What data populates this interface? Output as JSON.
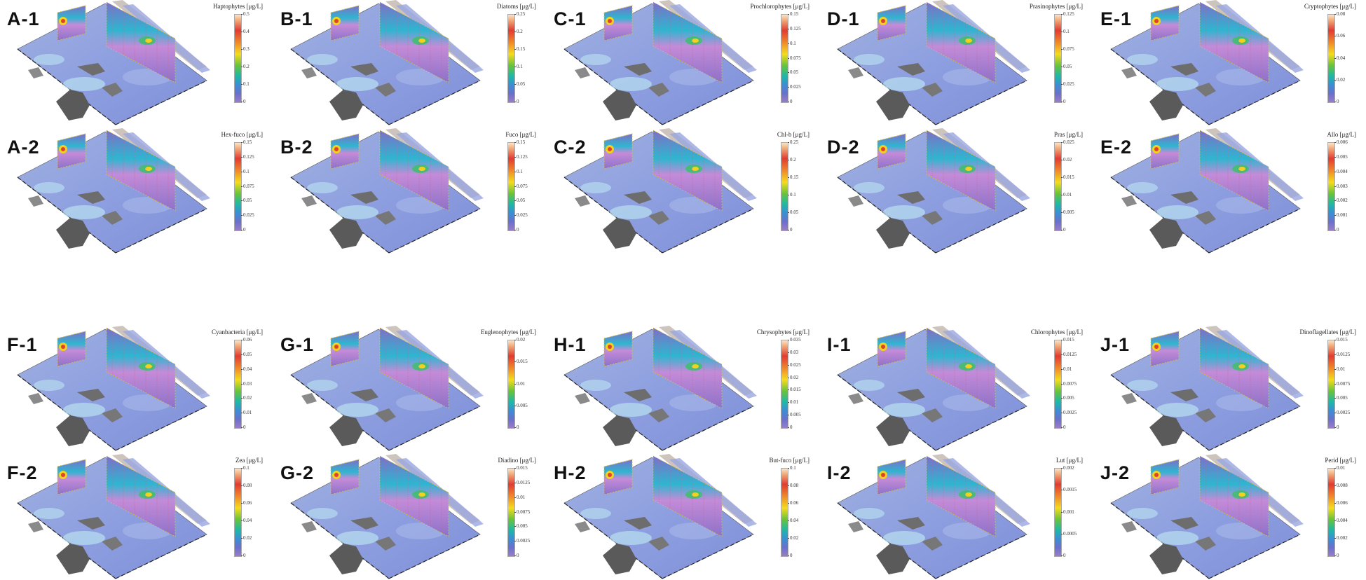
{
  "panels": [
    {
      "label": "A-1",
      "title": "Haptophytes [μg/L]",
      "ticks": [
        "0.5",
        "0.4",
        "0.3",
        "0.2",
        "0.1",
        "0"
      ]
    },
    {
      "label": "B-1",
      "title": "Diatoms [μg/L]",
      "ticks": [
        "0.25",
        "0.2",
        "0.15",
        "0.1",
        "0.05",
        "0"
      ]
    },
    {
      "label": "C-1",
      "title": "Prochlorophytes [μg/L]",
      "ticks": [
        "0.15",
        "0.125",
        "0.1",
        "0.075",
        "0.05",
        "0.025",
        "0"
      ]
    },
    {
      "label": "D-1",
      "title": "Prasinophytes [μg/L]",
      "ticks": [
        "0.125",
        "0.1",
        "0.075",
        "0.05",
        "0.025",
        "0"
      ]
    },
    {
      "label": "E-1",
      "title": "Cryptophytes [μg/L]",
      "ticks": [
        "0.08",
        "0.06",
        "0.04",
        "0.02",
        "0"
      ]
    },
    {
      "label": "A-2",
      "title": "Hex-fuco [μg/L]",
      "ticks": [
        "0.15",
        "0.125",
        "0.1",
        "0.075",
        "0.05",
        "0.025",
        "0"
      ]
    },
    {
      "label": "B-2",
      "title": "Fuco [μg/L]",
      "ticks": [
        "0.15",
        "0.125",
        "0.1",
        "0.075",
        "0.05",
        "0.025",
        "0"
      ]
    },
    {
      "label": "C-2",
      "title": "Chl-b [μg/L]",
      "ticks": [
        "0.25",
        "0.2",
        "0.15",
        "0.1",
        "0.05",
        "0"
      ]
    },
    {
      "label": "D-2",
      "title": "Pras [μg/L]",
      "ticks": [
        "0.025",
        "0.02",
        "0.015",
        "0.01",
        "0.005",
        "0"
      ]
    },
    {
      "label": "E-2",
      "title": "Allo [μg/L]",
      "ticks": [
        "0.006",
        "0.005",
        "0.004",
        "0.003",
        "0.002",
        "0.001",
        "0"
      ]
    },
    {
      "label": "F-1",
      "title": "Cyanbacteria [μg/L]",
      "ticks": [
        "0.06",
        "0.05",
        "0.04",
        "0.03",
        "0.02",
        "0.01",
        "0"
      ]
    },
    {
      "label": "G-1",
      "title": "Euglenophytes [μg/L]",
      "ticks": [
        "0.02",
        "0.015",
        "0.01",
        "0.005",
        "0"
      ]
    },
    {
      "label": "H-1",
      "title": "Chrysophytes [μg/L]",
      "ticks": [
        "0.035",
        "0.03",
        "0.025",
        "0.02",
        "0.015",
        "0.01",
        "0.005",
        "0"
      ]
    },
    {
      "label": "I-1",
      "title": "Chlorophytes [μg/L]",
      "ticks": [
        "0.015",
        "0.0125",
        "0.01",
        "0.0075",
        "0.005",
        "0.0025",
        "0"
      ]
    },
    {
      "label": "J-1",
      "title": "Dinoflagellates [μg/L]",
      "ticks": [
        "0.015",
        "0.0125",
        "0.01",
        "0.0075",
        "0.005",
        "0.0025",
        "0"
      ]
    },
    {
      "label": "F-2",
      "title": "Zea [μg/L]",
      "ticks": [
        "0.1",
        "0.08",
        "0.06",
        "0.04",
        "0.02",
        "0"
      ]
    },
    {
      "label": "G-2",
      "title": "Diadino [μg/L]",
      "ticks": [
        "0.015",
        "0.0125",
        "0.01",
        "0.0075",
        "0.005",
        "0.0025",
        "0"
      ]
    },
    {
      "label": "H-2",
      "title": "But-fuco [μg/L]",
      "ticks": [
        "0.1",
        "0.08",
        "0.06",
        "0.04",
        "0.02",
        "0"
      ]
    },
    {
      "label": "I-2",
      "title": "Lut [μg/L]",
      "ticks": [
        "0.002",
        "0.0015",
        "0.001",
        "0.0005",
        "0"
      ]
    },
    {
      "label": "J-2",
      "title": "Perid [μg/L]",
      "ticks": [
        "0.01",
        "0.008",
        "0.006",
        "0.004",
        "0.002",
        "0"
      ]
    }
  ]
}
